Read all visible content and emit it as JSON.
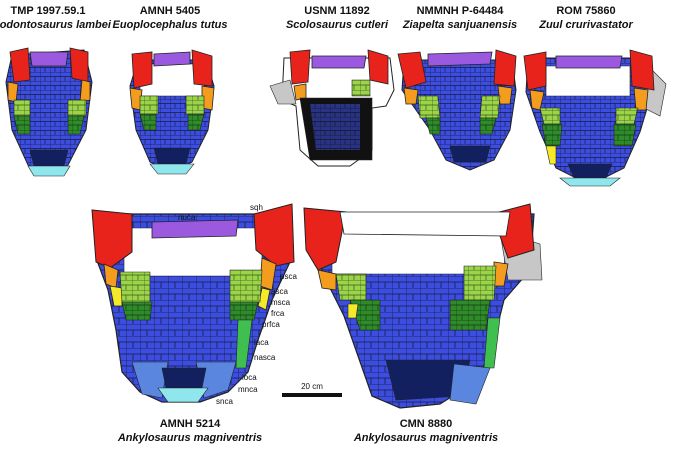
{
  "specimens": [
    {
      "id": "TMP 1997.59.1",
      "species": "Anodontosaurus lambei"
    },
    {
      "id": "AMNH 5405",
      "species": "Euoplocephalus tutus"
    },
    {
      "id": "USNM 11892",
      "species": "Scolosaurus cutleri"
    },
    {
      "id": "NMMNH P-64484",
      "species": "Ziapelta sanjuanensis"
    },
    {
      "id": "ROM 75860",
      "species": "Zuul crurivastator"
    },
    {
      "id": "AMNH 5214",
      "species": "Ankylosaurus magniventris"
    },
    {
      "id": "CMN 8880",
      "species": "Ankylosaurus magniventris"
    }
  ],
  "annotations": [
    "nuca",
    "sqh",
    "psca",
    "asca",
    "msca",
    "frca",
    "prfca",
    "laca",
    "nasca",
    "loca",
    "mnca",
    "snca"
  ],
  "scale_bar": {
    "label": "20 cm"
  },
  "colors": {
    "squamosal": "#e8231b",
    "nuchal": "#9b59e0",
    "postocular": "#f39c1e",
    "lacrimal_yellow": "#f4ea2a",
    "frontal_light": "#9bd34a",
    "frontal_dark": "#2f8a2a",
    "median": "#3b4ee0",
    "median_dark": "#1f2f9a",
    "nasal_dark": "#13205f",
    "snout": "#8fe6ec",
    "loreal": "#5b86e0",
    "grey": "#c7c7c7",
    "lacrimal_green": "#3fbf4f"
  }
}
